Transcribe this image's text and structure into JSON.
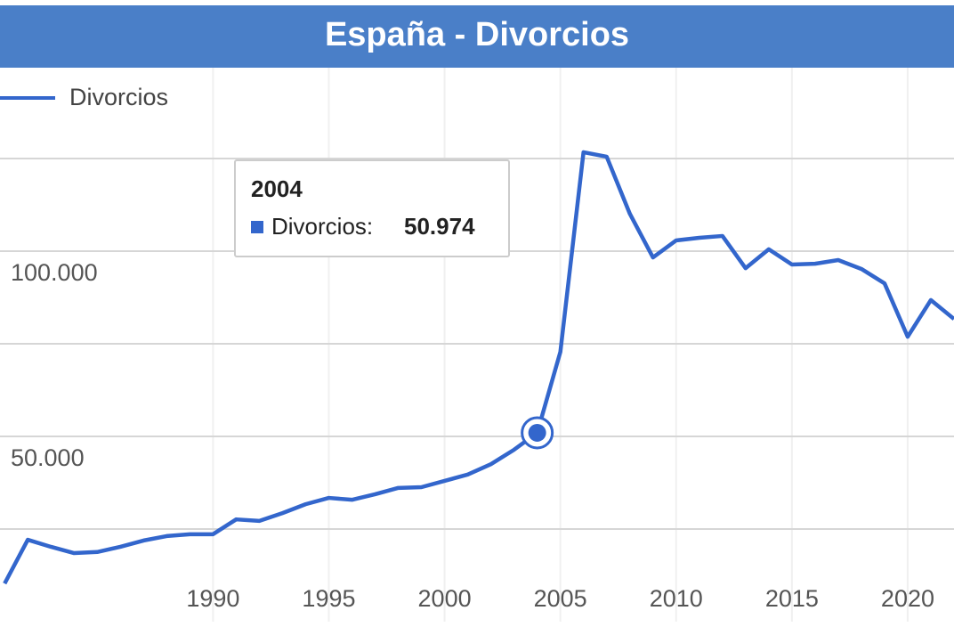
{
  "chart_data": {
    "type": "line",
    "title": "España - Divorcios",
    "x": [
      1981,
      1982,
      1983,
      1984,
      1985,
      1986,
      1987,
      1988,
      1989,
      1990,
      1991,
      1992,
      1993,
      1994,
      1995,
      1996,
      1997,
      1998,
      1999,
      2000,
      2001,
      2002,
      2003,
      2004,
      2005,
      2006,
      2007,
      2008,
      2009,
      2010,
      2011,
      2012,
      2013,
      2014,
      2015,
      2016,
      2017,
      2018,
      2019,
      2020,
      2021,
      2022
    ],
    "series": [
      {
        "name": "Divorcios",
        "color": "#3366cc",
        "values": [
          10300,
          22100,
          20200,
          18500,
          18800,
          20200,
          21900,
          23100,
          23600,
          23600,
          27600,
          27200,
          29300,
          31700,
          33400,
          32900,
          34400,
          36100,
          36300,
          38000,
          39700,
          42500,
          46400,
          50974,
          72800,
          126700,
          125500,
          110100,
          98300,
          102900,
          103600,
          104100,
          95400,
          100500,
          96400,
          96600,
          97600,
          95200,
          91300,
          76900,
          86800,
          81700
        ]
      }
    ],
    "xlim": [
      1980.8,
      2022
    ],
    "xticks": [
      1990,
      1995,
      2000,
      2005,
      2010,
      2015,
      2020
    ],
    "ylim": [
      0,
      150000
    ],
    "yticks": [
      {
        "value": 50000,
        "label": "50.000"
      },
      {
        "value": 100000,
        "label": "100.000"
      }
    ],
    "ygrid": [
      25000,
      50000,
      75000,
      100000,
      125000
    ],
    "grid": true,
    "legend": "top-left",
    "tooltip": {
      "label": "Divorcios:",
      "value_label": "50.974"
    }
  }
}
